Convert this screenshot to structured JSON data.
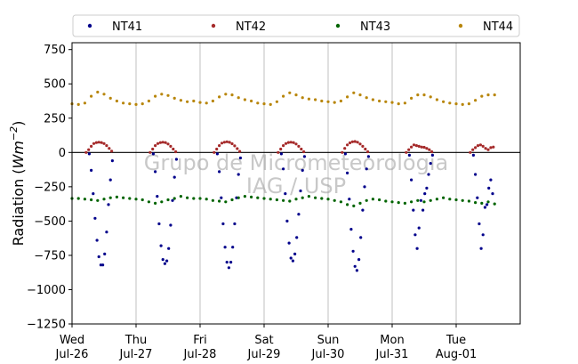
{
  "watermark": {
    "line1": "Grupo de Micrometeorologia",
    "line2": "IAG / USP"
  },
  "chart_data": {
    "type": "scatter",
    "ylabel": "Radiation (Wm⁻²)",
    "ylabel_base": "Radiation (",
    "ylabel_unit": "Wm",
    "ylabel_exp": "−2",
    "ylabel_close": ")",
    "ylim": [
      -1250,
      800
    ],
    "yticks": [
      750,
      500,
      250,
      0,
      -250,
      -500,
      -750,
      -1000,
      -1250
    ],
    "ytick_labels": [
      "750",
      "500",
      "250",
      "0",
      "−250",
      "−500",
      "−750",
      "−1000",
      "−1250"
    ],
    "xlim": [
      0,
      7
    ],
    "xticks": [
      {
        "x": 0,
        "day": "Wed",
        "date": "Jul-26"
      },
      {
        "x": 1,
        "day": "Thu",
        "date": "Jul-27"
      },
      {
        "x": 2,
        "day": "Fri",
        "date": "Jul-28"
      },
      {
        "x": 3,
        "day": "Sat",
        "date": "Jul-29"
      },
      {
        "x": 4,
        "day": "Sun",
        "date": "Jul-30"
      },
      {
        "x": 5,
        "day": "Mon",
        "date": "Jul-31"
      },
      {
        "x": 6,
        "day": "Tue",
        "date": "Aug-01"
      }
    ],
    "grid": "vertical",
    "zero_line": true,
    "legend_position": "top",
    "series": [
      {
        "name": "NT41",
        "color": "#00008b",
        "points": [
          [
            0.27,
            -10
          ],
          [
            0.3,
            -130
          ],
          [
            0.33,
            -300
          ],
          [
            0.36,
            -480
          ],
          [
            0.39,
            -640
          ],
          [
            0.42,
            -760
          ],
          [
            0.45,
            -820
          ],
          [
            0.48,
            -820
          ],
          [
            0.51,
            -740
          ],
          [
            0.54,
            -580
          ],
          [
            0.57,
            -380
          ],
          [
            0.6,
            -200
          ],
          [
            0.63,
            -60
          ],
          [
            1.27,
            -10
          ],
          [
            1.3,
            -140
          ],
          [
            1.33,
            -320
          ],
          [
            1.36,
            -520
          ],
          [
            1.39,
            -680
          ],
          [
            1.42,
            -780
          ],
          [
            1.45,
            -810
          ],
          [
            1.48,
            -790
          ],
          [
            1.51,
            -700
          ],
          [
            1.54,
            -530
          ],
          [
            1.57,
            -350
          ],
          [
            1.6,
            -180
          ],
          [
            1.63,
            -50
          ],
          [
            2.27,
            -10
          ],
          [
            2.3,
            -140
          ],
          [
            2.33,
            -330
          ],
          [
            2.36,
            -520
          ],
          [
            2.39,
            -690
          ],
          [
            2.42,
            -800
          ],
          [
            2.45,
            -840
          ],
          [
            2.48,
            -800
          ],
          [
            2.51,
            -690
          ],
          [
            2.54,
            -520
          ],
          [
            2.57,
            -330
          ],
          [
            2.6,
            -160
          ],
          [
            2.63,
            -40
          ],
          [
            3.27,
            -10
          ],
          [
            3.3,
            -120
          ],
          [
            3.33,
            -300
          ],
          [
            3.36,
            -500
          ],
          [
            3.39,
            -660
          ],
          [
            3.42,
            -770
          ],
          [
            3.45,
            -790
          ],
          [
            3.48,
            -740
          ],
          [
            3.51,
            -620
          ],
          [
            3.54,
            -450
          ],
          [
            3.57,
            -280
          ],
          [
            3.6,
            -130
          ],
          [
            3.63,
            -30
          ],
          [
            4.27,
            -10
          ],
          [
            4.3,
            -150
          ],
          [
            4.33,
            -340
          ],
          [
            4.36,
            -560
          ],
          [
            4.39,
            -720
          ],
          [
            4.42,
            -830
          ],
          [
            4.45,
            -860
          ],
          [
            4.48,
            -780
          ],
          [
            4.51,
            -620
          ],
          [
            4.54,
            -420
          ],
          [
            4.57,
            -250
          ],
          [
            4.6,
            -120
          ],
          [
            4.63,
            -30
          ],
          [
            5.27,
            -20
          ],
          [
            5.3,
            -200
          ],
          [
            5.33,
            -420
          ],
          [
            5.36,
            -600
          ],
          [
            5.39,
            -700
          ],
          [
            5.42,
            -550
          ],
          [
            5.45,
            -350
          ],
          [
            5.48,
            -420
          ],
          [
            5.51,
            -300
          ],
          [
            5.54,
            -260
          ],
          [
            5.57,
            -160
          ],
          [
            5.6,
            -80
          ],
          [
            5.63,
            -20
          ],
          [
            6.27,
            -20
          ],
          [
            6.3,
            -160
          ],
          [
            6.33,
            -330
          ],
          [
            6.36,
            -520
          ],
          [
            6.39,
            -700
          ],
          [
            6.42,
            -600
          ],
          [
            6.45,
            -400
          ],
          [
            6.48,
            -380
          ],
          [
            6.51,
            -260
          ],
          [
            6.54,
            -200
          ],
          [
            6.57,
            -300
          ]
        ]
      },
      {
        "name": "NT42",
        "color": "#a52a2a",
        "points": [
          [
            0.22,
            0
          ],
          [
            0.26,
            20
          ],
          [
            0.3,
            45
          ],
          [
            0.34,
            65
          ],
          [
            0.38,
            72
          ],
          [
            0.42,
            75
          ],
          [
            0.46,
            72
          ],
          [
            0.5,
            65
          ],
          [
            0.54,
            50
          ],
          [
            0.58,
            30
          ],
          [
            0.62,
            10
          ],
          [
            1.22,
            0
          ],
          [
            1.26,
            25
          ],
          [
            1.3,
            50
          ],
          [
            1.34,
            65
          ],
          [
            1.38,
            72
          ],
          [
            1.42,
            75
          ],
          [
            1.46,
            72
          ],
          [
            1.5,
            62
          ],
          [
            1.54,
            45
          ],
          [
            1.58,
            25
          ],
          [
            1.62,
            5
          ],
          [
            2.22,
            0
          ],
          [
            2.26,
            25
          ],
          [
            2.3,
            50
          ],
          [
            2.34,
            68
          ],
          [
            2.38,
            75
          ],
          [
            2.42,
            78
          ],
          [
            2.46,
            74
          ],
          [
            2.5,
            64
          ],
          [
            2.54,
            48
          ],
          [
            2.58,
            28
          ],
          [
            2.62,
            8
          ],
          [
            3.22,
            0
          ],
          [
            3.26,
            25
          ],
          [
            3.3,
            50
          ],
          [
            3.34,
            65
          ],
          [
            3.38,
            73
          ],
          [
            3.42,
            75
          ],
          [
            3.46,
            72
          ],
          [
            3.5,
            62
          ],
          [
            3.54,
            45
          ],
          [
            3.58,
            25
          ],
          [
            3.62,
            5
          ],
          [
            4.22,
            0
          ],
          [
            4.26,
            30
          ],
          [
            4.3,
            55
          ],
          [
            4.34,
            70
          ],
          [
            4.38,
            78
          ],
          [
            4.42,
            80
          ],
          [
            4.46,
            75
          ],
          [
            4.5,
            62
          ],
          [
            4.54,
            45
          ],
          [
            4.58,
            25
          ],
          [
            4.62,
            5
          ],
          [
            5.22,
            0
          ],
          [
            5.26,
            20
          ],
          [
            5.3,
            40
          ],
          [
            5.34,
            55
          ],
          [
            5.38,
            50
          ],
          [
            5.42,
            45
          ],
          [
            5.46,
            40
          ],
          [
            5.5,
            38
          ],
          [
            5.54,
            30
          ],
          [
            5.58,
            20
          ],
          [
            5.62,
            5
          ],
          [
            6.22,
            0
          ],
          [
            6.26,
            20
          ],
          [
            6.3,
            35
          ],
          [
            6.34,
            50
          ],
          [
            6.38,
            55
          ],
          [
            6.42,
            45
          ],
          [
            6.46,
            30
          ],
          [
            6.5,
            20
          ],
          [
            6.54,
            35
          ],
          [
            6.58,
            40
          ]
        ]
      },
      {
        "name": "NT43",
        "color": "#006400",
        "points": [
          [
            0,
            -335
          ],
          [
            0.1,
            -335
          ],
          [
            0.2,
            -340
          ],
          [
            0.3,
            -345
          ],
          [
            0.4,
            -350
          ],
          [
            0.5,
            -340
          ],
          [
            0.6,
            -330
          ],
          [
            0.7,
            -325
          ],
          [
            0.8,
            -330
          ],
          [
            0.9,
            -335
          ],
          [
            1,
            -340
          ],
          [
            1.1,
            -345
          ],
          [
            1.2,
            -360
          ],
          [
            1.3,
            -370
          ],
          [
            1.4,
            -360
          ],
          [
            1.5,
            -345
          ],
          [
            1.6,
            -335
          ],
          [
            1.7,
            -320
          ],
          [
            1.8,
            -330
          ],
          [
            1.9,
            -335
          ],
          [
            2,
            -335
          ],
          [
            2.1,
            -340
          ],
          [
            2.2,
            -350
          ],
          [
            2.3,
            -355
          ],
          [
            2.4,
            -360
          ],
          [
            2.5,
            -345
          ],
          [
            2.6,
            -330
          ],
          [
            2.7,
            -320
          ],
          [
            2.8,
            -325
          ],
          [
            2.9,
            -330
          ],
          [
            3,
            -335
          ],
          [
            3.1,
            -340
          ],
          [
            3.2,
            -345
          ],
          [
            3.3,
            -350
          ],
          [
            3.4,
            -355
          ],
          [
            3.5,
            -340
          ],
          [
            3.6,
            -330
          ],
          [
            3.7,
            -320
          ],
          [
            3.8,
            -330
          ],
          [
            3.9,
            -335
          ],
          [
            4,
            -340
          ],
          [
            4.1,
            -350
          ],
          [
            4.2,
            -360
          ],
          [
            4.3,
            -380
          ],
          [
            4.4,
            -390
          ],
          [
            4.5,
            -370
          ],
          [
            4.6,
            -350
          ],
          [
            4.7,
            -340
          ],
          [
            4.8,
            -345
          ],
          [
            4.9,
            -355
          ],
          [
            5,
            -360
          ],
          [
            5.1,
            -365
          ],
          [
            5.2,
            -370
          ],
          [
            5.3,
            -360
          ],
          [
            5.4,
            -350
          ],
          [
            5.5,
            -360
          ],
          [
            5.6,
            -350
          ],
          [
            5.7,
            -340
          ],
          [
            5.8,
            -330
          ],
          [
            5.9,
            -340
          ],
          [
            6,
            -345
          ],
          [
            6.1,
            -350
          ],
          [
            6.2,
            -355
          ],
          [
            6.3,
            -365
          ],
          [
            6.4,
            -370
          ],
          [
            6.5,
            -360
          ],
          [
            6.6,
            -375
          ]
        ]
      },
      {
        "name": "NT44",
        "color": "#b8860b",
        "points": [
          [
            0,
            355
          ],
          [
            0.1,
            350
          ],
          [
            0.2,
            360
          ],
          [
            0.3,
            410
          ],
          [
            0.4,
            440
          ],
          [
            0.5,
            425
          ],
          [
            0.6,
            395
          ],
          [
            0.7,
            375
          ],
          [
            0.8,
            360
          ],
          [
            0.9,
            355
          ],
          [
            1,
            350
          ],
          [
            1.1,
            355
          ],
          [
            1.2,
            375
          ],
          [
            1.3,
            410
          ],
          [
            1.4,
            425
          ],
          [
            1.5,
            415
          ],
          [
            1.6,
            395
          ],
          [
            1.7,
            380
          ],
          [
            1.8,
            370
          ],
          [
            1.9,
            375
          ],
          [
            2,
            365
          ],
          [
            2.1,
            360
          ],
          [
            2.2,
            375
          ],
          [
            2.3,
            405
          ],
          [
            2.4,
            425
          ],
          [
            2.5,
            420
          ],
          [
            2.6,
            400
          ],
          [
            2.7,
            385
          ],
          [
            2.8,
            375
          ],
          [
            2.9,
            360
          ],
          [
            3,
            355
          ],
          [
            3.1,
            350
          ],
          [
            3.2,
            370
          ],
          [
            3.3,
            410
          ],
          [
            3.4,
            435
          ],
          [
            3.5,
            420
          ],
          [
            3.6,
            400
          ],
          [
            3.7,
            390
          ],
          [
            3.8,
            385
          ],
          [
            3.9,
            375
          ],
          [
            4,
            370
          ],
          [
            4.1,
            365
          ],
          [
            4.2,
            375
          ],
          [
            4.3,
            405
          ],
          [
            4.4,
            435
          ],
          [
            4.5,
            420
          ],
          [
            4.6,
            400
          ],
          [
            4.7,
            385
          ],
          [
            4.8,
            375
          ],
          [
            4.9,
            370
          ],
          [
            5,
            365
          ],
          [
            5.1,
            355
          ],
          [
            5.2,
            360
          ],
          [
            5.3,
            395
          ],
          [
            5.4,
            420
          ],
          [
            5.5,
            420
          ],
          [
            5.6,
            405
          ],
          [
            5.7,
            385
          ],
          [
            5.8,
            370
          ],
          [
            5.9,
            360
          ],
          [
            6,
            355
          ],
          [
            6.1,
            350
          ],
          [
            6.2,
            355
          ],
          [
            6.3,
            380
          ],
          [
            6.4,
            410
          ],
          [
            6.5,
            420
          ],
          [
            6.6,
            420
          ]
        ]
      }
    ]
  }
}
